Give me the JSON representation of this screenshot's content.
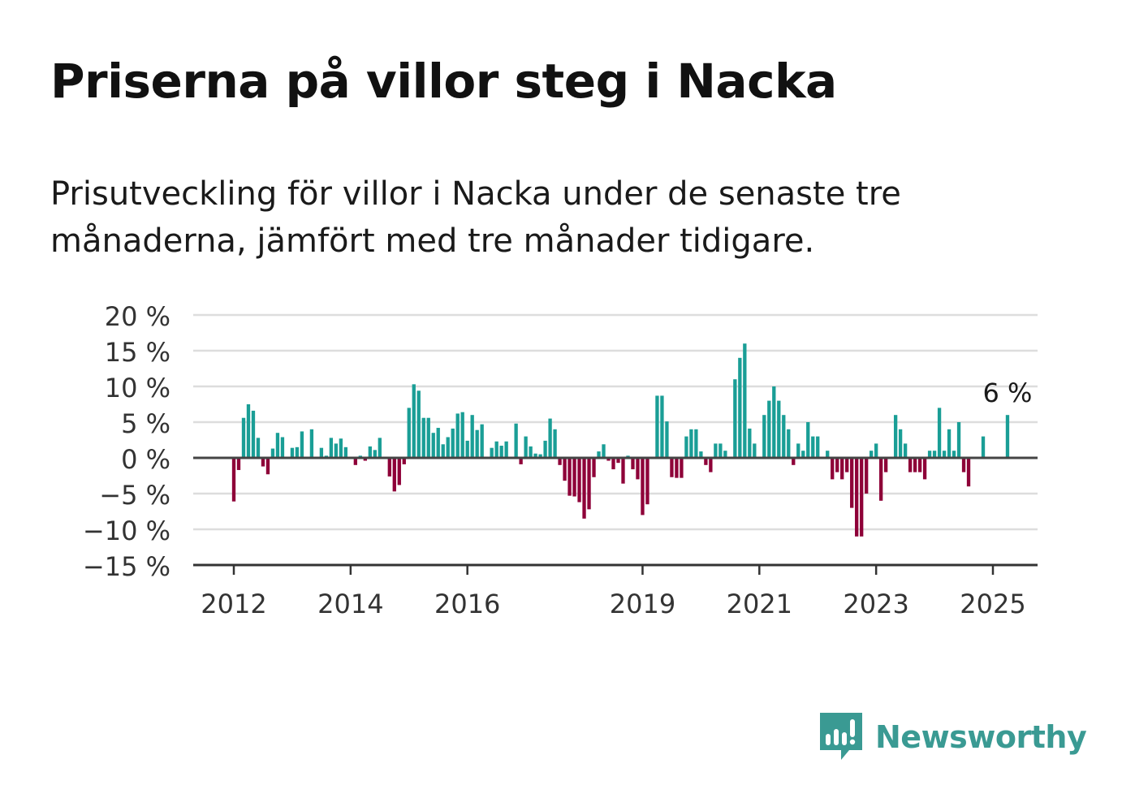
{
  "title": "Priserna på villor steg i Nacka",
  "subtitle": "Prisutveckling för villor i Nacka under de senaste tre månaderna, jämfört med tre månader tidigare.",
  "brand": {
    "name": "Newsworthy",
    "icon": "newsworthy-logo-icon",
    "color": "#3a9a93"
  },
  "chart_data": {
    "type": "bar",
    "title": "Priserna på villor steg i Nacka",
    "xlabel": "",
    "ylabel": "",
    "unit": "%",
    "ylim": [
      -15,
      20
    ],
    "yticks": [
      -15,
      -10,
      -5,
      0,
      5,
      10,
      15,
      20
    ],
    "ytick_labels": [
      "−15 %",
      "−10 %",
      "−5 %",
      "0 %",
      "5 %",
      "10 %",
      "15 %",
      "20 %"
    ],
    "xticks": [
      2012,
      2014,
      2016,
      2019,
      2021,
      2023,
      2025
    ],
    "xtick_labels": [
      "2012",
      "2014",
      "2016",
      "2019",
      "2021",
      "2023",
      "2025"
    ],
    "grid": true,
    "colors": {
      "positive": "#1a9e96",
      "negative": "#8e0038",
      "zero_line": "#444444",
      "grid": "#dddddd"
    },
    "annotation": {
      "text": "6 %",
      "target": "last"
    },
    "start": "2012-01",
    "values": [
      -6.1,
      -1.7,
      5.6,
      7.5,
      6.6,
      2.8,
      -1.2,
      -2.3,
      1.3,
      3.5,
      2.9,
      0.0,
      1.4,
      1.5,
      3.7,
      0.0,
      4.0,
      0.0,
      1.4,
      0.3,
      2.8,
      2.0,
      2.7,
      1.5,
      0.0,
      -1.0,
      0.3,
      -0.4,
      1.6,
      1.1,
      2.8,
      0.0,
      -2.6,
      -4.7,
      -3.8,
      -0.9,
      7.0,
      10.3,
      9.4,
      5.6,
      5.6,
      3.5,
      4.2,
      1.9,
      2.9,
      4.1,
      6.2,
      6.4,
      2.4,
      6.0,
      3.9,
      4.7,
      0.0,
      1.4,
      2.3,
      1.7,
      2.3,
      0.0,
      4.8,
      -0.9,
      3.0,
      1.6,
      0.6,
      0.5,
      2.4,
      5.5,
      4.0,
      -1.0,
      -3.2,
      -5.3,
      -5.4,
      -6.2,
      -8.5,
      -7.2,
      -2.7,
      0.9,
      1.9,
      -0.4,
      -1.6,
      -0.7,
      -3.6,
      0.3,
      -1.6,
      -3.0,
      -8.0,
      -6.5,
      0.0,
      8.7,
      8.7,
      5.1,
      -2.7,
      -2.8,
      -2.8,
      3.0,
      4.0,
      4.0,
      0.9,
      -1.0,
      -2.0,
      2.0,
      2.0,
      1.0,
      0.0,
      11.0,
      14.0,
      16.0,
      4.1,
      2.0,
      0.0,
      6.0,
      8.0,
      10.0,
      8.0,
      6.0,
      4.0,
      -1.0,
      2.0,
      1.0,
      5.0,
      3.0,
      3.0,
      0.0,
      1.0,
      -3.0,
      -2.0,
      -3.0,
      -2.0,
      -7.0,
      -11.0,
      -11.0,
      -5.0,
      1.0,
      2.0,
      -6.0,
      -2.0,
      0.0,
      6.0,
      4.0,
      2.0,
      -2.0,
      -2.0,
      -2.0,
      -3.0,
      1.0,
      1.0,
      7.0,
      1.0,
      4.0,
      1.0,
      5.0,
      -2.0,
      -4.0,
      0.0,
      0.0,
      3.0,
      0.0,
      0.0,
      0.0,
      0.0,
      6.0
    ]
  }
}
